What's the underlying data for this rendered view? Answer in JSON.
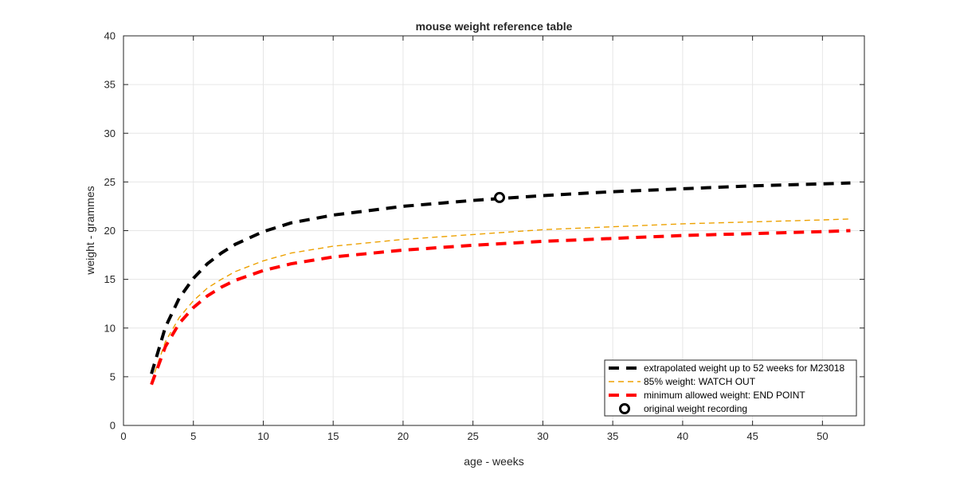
{
  "chart_data": {
    "type": "line",
    "title": "mouse weight reference table",
    "xlabel": "age - weeks",
    "ylabel": "weight - grammes",
    "xlim": [
      0,
      53
    ],
    "ylim": [
      0,
      40
    ],
    "xticks": [
      0,
      5,
      10,
      15,
      20,
      25,
      30,
      35,
      40,
      45,
      50
    ],
    "yticks": [
      0,
      5,
      10,
      15,
      20,
      25,
      30,
      35,
      40
    ],
    "grid": true,
    "legend_position": "bottom-right",
    "series": [
      {
        "name": "extrapolated weight up to 52 weeks for M23018",
        "color": "#000000",
        "style": "dashed-thick",
        "x": [
          2,
          3,
          4,
          5,
          6,
          7,
          8,
          10,
          12,
          15,
          20,
          25,
          30,
          35,
          40,
          45,
          50,
          52
        ],
        "y": [
          5.3,
          10.1,
          13.1,
          15.1,
          16.6,
          17.7,
          18.6,
          19.9,
          20.8,
          21.6,
          22.5,
          23.1,
          23.6,
          24.0,
          24.3,
          24.6,
          24.8,
          24.9
        ]
      },
      {
        "name": "85% weight: WATCH OUT",
        "color": "#EDA100",
        "style": "dashed-thin",
        "x": [
          2,
          3,
          4,
          5,
          6,
          7,
          8,
          10,
          12,
          15,
          20,
          25,
          30,
          35,
          40,
          45,
          50,
          52
        ],
        "y": [
          4.5,
          8.6,
          11.1,
          12.8,
          14.1,
          15.0,
          15.8,
          16.9,
          17.7,
          18.4,
          19.1,
          19.6,
          20.1,
          20.4,
          20.7,
          20.9,
          21.1,
          21.2
        ]
      },
      {
        "name": "minimum allowed weight: END POINT",
        "color": "#FF0000",
        "style": "dashed-thick",
        "x": [
          2,
          3,
          4,
          5,
          6,
          7,
          8,
          10,
          12,
          15,
          20,
          25,
          30,
          35,
          40,
          45,
          50,
          52
        ],
        "y": [
          4.2,
          8.1,
          10.5,
          12.1,
          13.3,
          14.2,
          14.9,
          15.9,
          16.6,
          17.3,
          18.0,
          18.5,
          18.9,
          19.2,
          19.5,
          19.7,
          19.9,
          20.0
        ]
      }
    ],
    "points": [
      {
        "name": "original weight recording",
        "x": 26.9,
        "y": 23.4,
        "marker": "circle-open",
        "color": "#000000"
      }
    ]
  }
}
